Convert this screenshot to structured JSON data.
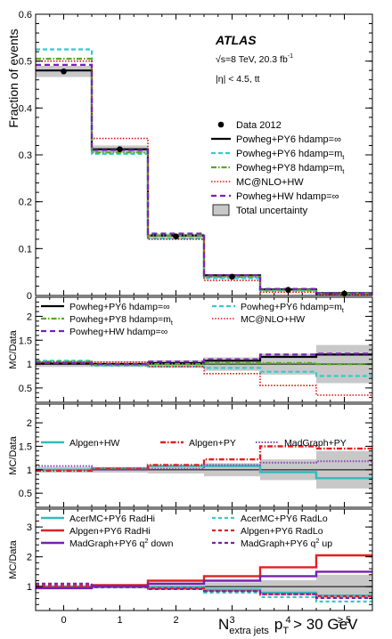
{
  "chart_data": {
    "type": "step",
    "experiment": "ATLAS",
    "energy_label": "√s=8 TeV, 20.3 fb",
    "energy_sup": "-1",
    "eta_label": "|η| < 4.5, t",
    "eta_tail": "t",
    "xlabel_main": "N",
    "xlabel_sub": "extra jets",
    "xlabel_pt": "p",
    "xlabel_pt_sub": "T",
    "xlabel_tail": "> 30 GeV",
    "x_tick_labels": [
      "0",
      "1",
      "2",
      "3",
      "4",
      "≥ 5"
    ],
    "colors": {
      "data": "#000000",
      "pwg_py6_inf": "#000000",
      "pwg_py6_mt": "#33cccc",
      "pwg_py8_mt": "#55aa22",
      "mcnlo_hw": "#dd1111",
      "pwg_hw_inf": "#7722bb",
      "uncertainty": "#c8c8c8",
      "alpgen_hw": "#33bbbb",
      "alpgen_py": "#dd2222",
      "madgraph_py": "#8844bb",
      "acermc_hi": "#33bbbb",
      "acermc_lo": "#33cccc",
      "alpgen_py6_hi": "#dd2222",
      "alpgen_py6_lo": "#dd2222",
      "madgraph_down": "#7722aa",
      "madgraph_up": "#7722aa"
    },
    "main": {
      "ylabel": "Fraction of events",
      "ylim": [
        0,
        0.6
      ],
      "y_tick_labels": [
        "0",
        "0.1",
        "0.2",
        "0.3",
        "0.4",
        "0.5",
        "0.6"
      ],
      "data": [
        0.478,
        0.312,
        0.126,
        0.04,
        0.012,
        0.004
      ],
      "uncertainty": [
        0.012,
        0.008,
        0.006,
        0.004,
        0.003,
        0.002
      ],
      "series": [
        {
          "name": "Powheg+PY6 hdamp=∞",
          "values": [
            0.48,
            0.312,
            0.128,
            0.043,
            0.013,
            0.005
          ]
        },
        {
          "name": "Powheg+PY6 hdamp=m",
          "name_sub": "t",
          "values": [
            0.525,
            0.302,
            0.122,
            0.037,
            0.01,
            0.003
          ]
        },
        {
          "name": "Powheg+PY8 hdamp=m",
          "name_sub": "t",
          "values": [
            0.505,
            0.305,
            0.128,
            0.04,
            0.012,
            0.004
          ]
        },
        {
          "name": "MC@NLO+HW",
          "values": [
            0.5,
            0.335,
            0.12,
            0.032,
            0.007,
            0.002
          ]
        },
        {
          "name": "Powheg+HW hdamp=∞",
          "values": [
            0.492,
            0.31,
            0.132,
            0.043,
            0.014,
            0.005
          ]
        }
      ],
      "legend": {
        "data": "Data 2012",
        "uncertainty": "Total uncertainty"
      }
    },
    "ratio_panels": [
      {
        "ylabel": "MC/Data",
        "ylim": [
          0.2,
          2.4
        ],
        "y_tick_labels": [
          "0.5",
          "1",
          "1.5",
          "2"
        ],
        "uncertainty": [
          0.06,
          0.06,
          0.08,
          0.14,
          0.22,
          0.4
        ],
        "series": [
          {
            "name": "Powheg+PY6 hdamp=∞",
            "values": [
              1.01,
              1.0,
              1.02,
              1.07,
              1.15,
              1.2
            ]
          },
          {
            "name": "Powheg+PY6 hdamp=m",
            "name_sub": "t",
            "values": [
              1.07,
              0.97,
              0.95,
              0.92,
              0.84,
              0.75
            ]
          },
          {
            "name": "Powheg+PY8 hdamp=m",
            "name_sub": "t",
            "values": [
              1.05,
              0.98,
              1.0,
              1.02,
              1.02,
              1.0
            ]
          },
          {
            "name": "MC@NLO+HW",
            "values": [
              1.04,
              1.04,
              0.95,
              0.8,
              0.55,
              0.35
            ]
          },
          {
            "name": "Powheg+HW hdamp=∞",
            "values": [
              1.02,
              1.0,
              1.05,
              1.1,
              1.2,
              1.22
            ]
          }
        ]
      },
      {
        "ylabel": "MC/Data",
        "ylim": [
          0.2,
          2.4
        ],
        "y_tick_labels": [
          "0.5",
          "1",
          "1.5",
          "2"
        ],
        "uncertainty": [
          0.06,
          0.06,
          0.08,
          0.14,
          0.22,
          0.4
        ],
        "series": [
          {
            "name": "Alpgen+HW",
            "values": [
              1.0,
              1.03,
              1.08,
              1.08,
              0.95,
              0.82
            ]
          },
          {
            "name": "Alpgen+PY",
            "values": [
              0.98,
              1.02,
              1.1,
              1.22,
              1.5,
              1.45
            ]
          },
          {
            "name": "MadGraph+PY",
            "values": [
              1.08,
              1.0,
              1.02,
              1.1,
              1.15,
              1.18
            ]
          }
        ]
      },
      {
        "ylabel": "MC/Data",
        "ylim": [
          0.2,
          3.6
        ],
        "y_tick_labels": [
          "1",
          "2",
          "3"
        ],
        "uncertainty": [
          0.06,
          0.06,
          0.08,
          0.14,
          0.22,
          0.4
        ],
        "series": [
          {
            "name": "AcerMC+PY6 RadHi",
            "values": [
              1.0,
              1.0,
              0.98,
              0.9,
              0.8,
              0.7
            ]
          },
          {
            "name": "AcerMC+PY6 RadLo",
            "values": [
              1.02,
              0.98,
              0.92,
              0.8,
              0.65,
              0.5
            ]
          },
          {
            "name": "Alpgen+PY6 RadHi",
            "values": [
              0.97,
              1.05,
              1.2,
              1.35,
              1.65,
              2.05
            ]
          },
          {
            "name": "Alpgen+PY6 RadLo",
            "values": [
              1.04,
              1.0,
              0.95,
              0.85,
              0.75,
              0.68
            ]
          },
          {
            "name": "MadGraph+PY6 q",
            "name_sup": "2",
            "name_tail": " down",
            "values": [
              0.95,
              1.02,
              1.1,
              1.2,
              1.35,
              1.5
            ]
          },
          {
            "name": "MadGraph+PY6 q",
            "name_sup": "2",
            "name_tail": " up",
            "values": [
              1.1,
              0.98,
              0.92,
              0.85,
              0.75,
              0.62
            ]
          }
        ]
      }
    ]
  }
}
